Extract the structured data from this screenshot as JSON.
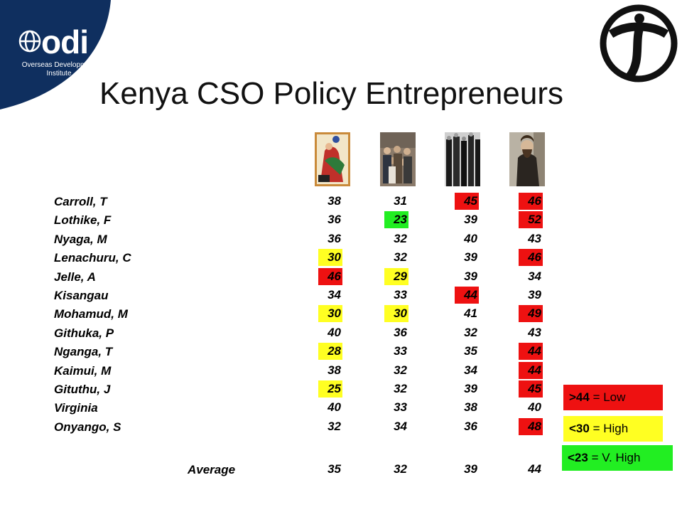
{
  "header": {
    "odi_logo_text": "odi",
    "odi_subtitle": "Overseas Development Institute",
    "title": "Kenya CSO Policy Entrepreneurs"
  },
  "colors": {
    "odi_navy": "#0f2f5f",
    "low": "#ee1111",
    "high": "#ffff22",
    "very_high": "#22ee22"
  },
  "column_images": [
    "illustrated-figures-painting",
    "crowd-photo",
    "historic-group-photo",
    "bearded-man-portrait"
  ],
  "rows": [
    {
      "name": "Carroll, T",
      "values": [
        "38",
        "31",
        "45",
        "46"
      ],
      "highlights": [
        "",
        "",
        "red",
        "red"
      ]
    },
    {
      "name": "Lothike, F",
      "values": [
        "36",
        "23",
        "39",
        "52"
      ],
      "highlights": [
        "",
        "green",
        "",
        "red"
      ]
    },
    {
      "name": "Nyaga, M",
      "values": [
        "36",
        "32",
        "40",
        "43"
      ],
      "highlights": [
        "",
        "",
        "",
        ""
      ]
    },
    {
      "name": "Lenachuru, C",
      "values": [
        "30",
        "32",
        "39",
        "46"
      ],
      "highlights": [
        "yellow",
        "",
        "",
        "red"
      ]
    },
    {
      "name": "Jelle, A",
      "values": [
        "46",
        "29",
        "39",
        "34"
      ],
      "highlights": [
        "red",
        "yellow",
        "",
        ""
      ]
    },
    {
      "name": "Kisangau",
      "values": [
        "34",
        "33",
        "44",
        "39"
      ],
      "highlights": [
        "",
        "",
        "red",
        ""
      ]
    },
    {
      "name": "Mohamud, M",
      "values": [
        "30",
        "30",
        "41",
        "49"
      ],
      "highlights": [
        "yellow",
        "yellow",
        "",
        "red"
      ]
    },
    {
      "name": "Githuka, P",
      "values": [
        "40",
        "36",
        "32",
        "43"
      ],
      "highlights": [
        "",
        "",
        "",
        ""
      ]
    },
    {
      "name": "Nganga, T",
      "values": [
        "28",
        "33",
        "35",
        "44"
      ],
      "highlights": [
        "yellow",
        "",
        "",
        "red"
      ]
    },
    {
      "name": "Kaimui, M",
      "values": [
        "38",
        "32",
        "34",
        "44"
      ],
      "highlights": [
        "",
        "",
        "",
        "red"
      ]
    },
    {
      "name": "Gituthu, J",
      "values": [
        "25",
        "32",
        "39",
        "45"
      ],
      "highlights": [
        "yellow",
        "",
        "",
        "red"
      ]
    },
    {
      "name": "Virginia",
      "values": [
        "40",
        "33",
        "38",
        "40"
      ],
      "highlights": [
        "",
        "",
        "",
        ""
      ]
    },
    {
      "name": "Onyango, S",
      "values": [
        "32",
        "34",
        "36",
        "48"
      ],
      "highlights": [
        "",
        "",
        "",
        "red"
      ]
    }
  ],
  "average": {
    "label": "Average",
    "values": [
      "35",
      "32",
      "39",
      "44"
    ]
  },
  "legend": [
    {
      "key": ">44",
      "label": " = Low",
      "color": "red"
    },
    {
      "key": "<30",
      "label": " = High",
      "color": "yellow"
    },
    {
      "key": "<23",
      "label": " = V. High",
      "color": "green"
    }
  ]
}
